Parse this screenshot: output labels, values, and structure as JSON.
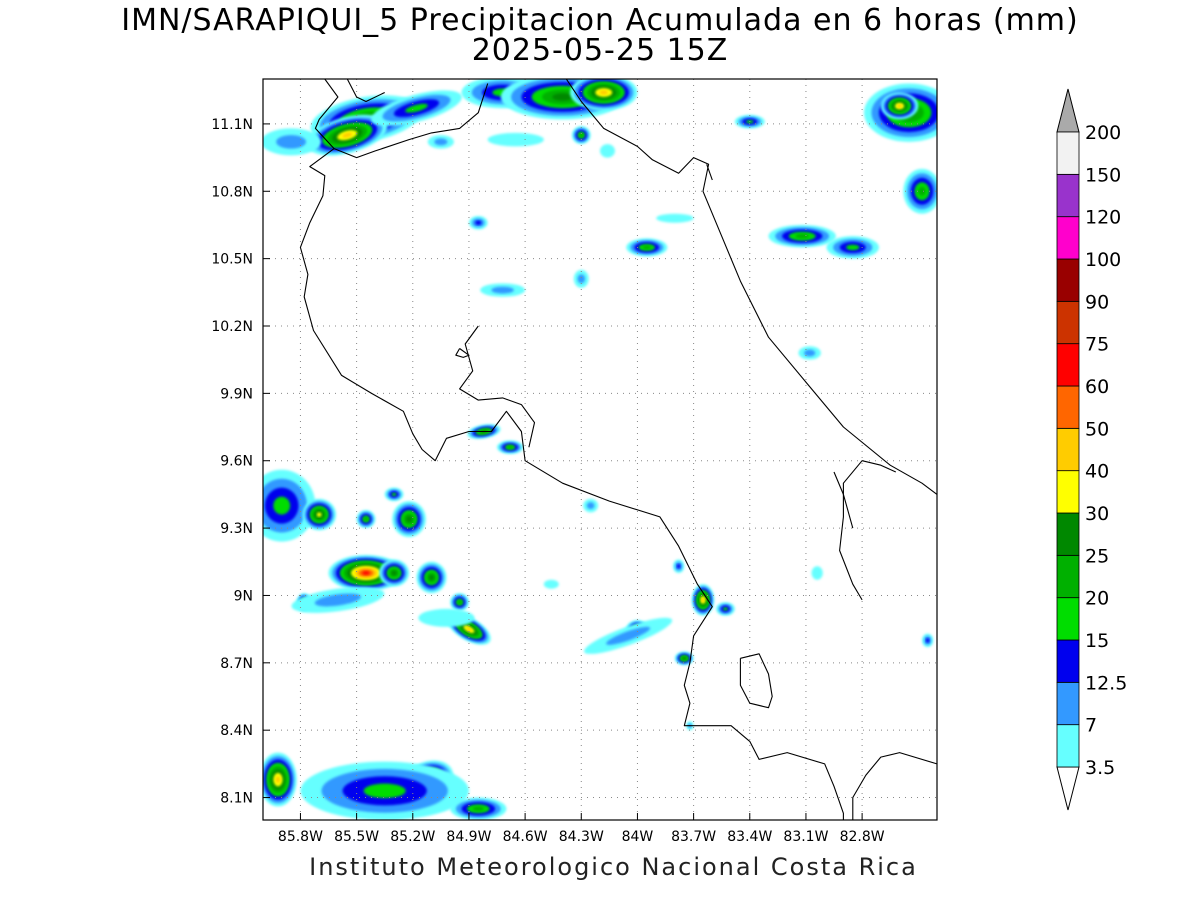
{
  "title": {
    "line1": "IMN/SARAPIQUI_5 Precipitacion Acumulada en 6 horas (mm)",
    "line2": "2025-05-25 15Z"
  },
  "footer": "Instituto Meteorologico Nacional Costa Rica",
  "map": {
    "lon_range": [
      -86.0,
      -82.4
    ],
    "lat_range": [
      8.0,
      11.3
    ],
    "x_ticks": [
      {
        "lon": -85.8,
        "label": "85.8W"
      },
      {
        "lon": -85.5,
        "label": "85.5W"
      },
      {
        "lon": -85.2,
        "label": "85.2W"
      },
      {
        "lon": -84.9,
        "label": "84.9W"
      },
      {
        "lon": -84.6,
        "label": "84.6W"
      },
      {
        "lon": -84.3,
        "label": "84.3W"
      },
      {
        "lon": -84.0,
        "label": "84W"
      },
      {
        "lon": -83.7,
        "label": "83.7W"
      },
      {
        "lon": -83.4,
        "label": "83.4W"
      },
      {
        "lon": -83.1,
        "label": "83.1W"
      },
      {
        "lon": -82.8,
        "label": "82.8W"
      }
    ],
    "y_ticks": [
      {
        "lat": 11.1,
        "label": "11.1N"
      },
      {
        "lat": 10.8,
        "label": "10.8N"
      },
      {
        "lat": 10.5,
        "label": "10.5N"
      },
      {
        "lat": 10.2,
        "label": "10.2N"
      },
      {
        "lat": 9.9,
        "label": "9.9N"
      },
      {
        "lat": 9.6,
        "label": "9.6N"
      },
      {
        "lat": 9.3,
        "label": "9.3N"
      },
      {
        "lat": 9.0,
        "label": "9N"
      },
      {
        "lat": 8.7,
        "label": "8.7N"
      },
      {
        "lat": 8.4,
        "label": "8.4N"
      },
      {
        "lat": 8.1,
        "label": "8.1N"
      }
    ],
    "grid": true,
    "coastlines": [
      [
        [
          -85.67,
          11.3
        ],
        [
          -85.6,
          11.22
        ],
        [
          -85.7,
          11.12
        ],
        [
          -85.72,
          11.08
        ],
        [
          -85.62,
          10.99
        ],
        [
          -85.75,
          10.91
        ],
        [
          -85.67,
          10.87
        ],
        [
          -85.68,
          10.78
        ],
        [
          -85.75,
          10.66
        ],
        [
          -85.8,
          10.55
        ],
        [
          -85.76,
          10.43
        ],
        [
          -85.78,
          10.33
        ],
        [
          -85.73,
          10.18
        ],
        [
          -85.58,
          9.98
        ],
        [
          -85.42,
          9.9
        ],
        [
          -85.25,
          9.82
        ],
        [
          -85.2,
          9.72
        ],
        [
          -85.15,
          9.65
        ],
        [
          -85.08,
          9.6
        ],
        [
          -85.02,
          9.7
        ],
        [
          -84.9,
          9.73
        ],
        [
          -84.78,
          9.73
        ],
        [
          -84.7,
          9.82
        ],
        [
          -84.62,
          9.73
        ],
        [
          -84.6,
          9.6
        ],
        [
          -84.4,
          9.5
        ],
        [
          -84.15,
          9.42
        ],
        [
          -83.88,
          9.35
        ],
        [
          -83.78,
          9.22
        ],
        [
          -83.68,
          9.05
        ],
        [
          -83.6,
          8.95
        ],
        [
          -83.7,
          8.82
        ],
        [
          -83.72,
          8.7
        ],
        [
          -83.75,
          8.6
        ],
        [
          -83.72,
          8.52
        ],
        [
          -83.75,
          8.42
        ],
        [
          -83.5,
          8.42
        ],
        [
          -83.4,
          8.35
        ],
        [
          -83.35,
          8.27
        ],
        [
          -83.2,
          8.3
        ],
        [
          -83.0,
          8.25
        ],
        [
          -82.95,
          8.15
        ],
        [
          -82.9,
          8.03
        ],
        [
          -82.9,
          8.0
        ]
      ],
      [
        [
          -84.85,
          10.2
        ],
        [
          -84.92,
          10.12
        ],
        [
          -84.88,
          10.0
        ],
        [
          -84.95,
          9.92
        ],
        [
          -84.85,
          9.87
        ],
        [
          -84.72,
          9.88
        ],
        [
          -84.62,
          9.85
        ],
        [
          -84.55,
          9.77
        ],
        [
          -84.58,
          9.66
        ]
      ],
      [
        [
          -84.95,
          10.1
        ],
        [
          -84.9,
          10.07
        ],
        [
          -84.93,
          10.06
        ],
        [
          -84.97,
          10.07
        ],
        [
          -84.95,
          10.1
        ]
      ],
      [
        [
          -84.38,
          11.3
        ],
        [
          -84.3,
          11.2
        ],
        [
          -84.18,
          11.08
        ],
        [
          -84.0,
          11.0
        ],
        [
          -83.92,
          10.94
        ],
        [
          -83.78,
          10.88
        ],
        [
          -83.7,
          10.95
        ],
        [
          -83.62,
          10.92
        ],
        [
          -83.65,
          10.8
        ],
        [
          -83.55,
          10.6
        ],
        [
          -83.45,
          10.4
        ],
        [
          -83.3,
          10.15
        ],
        [
          -83.1,
          9.95
        ],
        [
          -82.9,
          9.75
        ],
        [
          -82.65,
          9.58
        ],
        [
          -82.48,
          9.5
        ],
        [
          -82.4,
          9.45
        ]
      ],
      [
        [
          -83.63,
          10.92
        ],
        [
          -83.6,
          10.85
        ]
      ],
      [
        [
          -82.8,
          8.98
        ],
        [
          -82.85,
          9.05
        ],
        [
          -82.92,
          9.2
        ],
        [
          -82.9,
          9.35
        ],
        [
          -82.9,
          9.5
        ],
        [
          -82.8,
          9.6
        ],
        [
          -82.7,
          9.58
        ],
        [
          -82.62,
          9.55
        ]
      ],
      [
        [
          -82.85,
          8.0
        ],
        [
          -82.85,
          8.1
        ],
        [
          -82.78,
          8.2
        ],
        [
          -82.7,
          8.28
        ],
        [
          -82.6,
          8.3
        ],
        [
          -82.4,
          8.25
        ]
      ],
      [
        [
          -83.45,
          8.72
        ],
        [
          -83.35,
          8.74
        ],
        [
          -83.3,
          8.65
        ],
        [
          -83.28,
          8.55
        ],
        [
          -83.3,
          8.5
        ],
        [
          -83.4,
          8.52
        ],
        [
          -83.45,
          8.6
        ],
        [
          -83.45,
          8.72
        ]
      ],
      [
        [
          -85.62,
          10.99
        ],
        [
          -85.5,
          10.95
        ],
        [
          -85.4,
          10.98
        ],
        [
          -85.22,
          11.03
        ],
        [
          -85.1,
          11.06
        ],
        [
          -84.95,
          11.08
        ],
        [
          -84.85,
          11.15
        ],
        [
          -84.8,
          11.28
        ]
      ],
      [
        [
          -85.55,
          11.3
        ],
        [
          -85.5,
          11.22
        ],
        [
          -85.45,
          11.2
        ],
        [
          -85.35,
          11.24
        ]
      ],
      [
        [
          -82.95,
          9.55
        ],
        [
          -82.9,
          9.45
        ],
        [
          -82.85,
          9.3
        ]
      ]
    ],
    "rain_cells": [
      {
        "lon": -85.45,
        "lat": 11.12,
        "rx": 0.3,
        "ry": 0.1,
        "rot": -10,
        "peak": 25
      },
      {
        "lon": -85.55,
        "lat": 11.05,
        "rx": 0.22,
        "ry": 0.08,
        "rot": -15,
        "peak": 40
      },
      {
        "lon": -85.85,
        "lat": 11.02,
        "rx": 0.16,
        "ry": 0.06,
        "rot": 0,
        "peak": 7
      },
      {
        "lon": -85.18,
        "lat": 11.17,
        "rx": 0.25,
        "ry": 0.06,
        "rot": -15,
        "peak": 15
      },
      {
        "lon": -84.72,
        "lat": 11.24,
        "rx": 0.22,
        "ry": 0.07,
        "rot": 0,
        "peak": 15
      },
      {
        "lon": -84.4,
        "lat": 11.22,
        "rx": 0.33,
        "ry": 0.1,
        "rot": 0,
        "peak": 25
      },
      {
        "lon": -84.18,
        "lat": 11.24,
        "rx": 0.18,
        "ry": 0.08,
        "rot": 0,
        "peak": 40
      },
      {
        "lon": -84.3,
        "lat": 11.05,
        "rx": 0.05,
        "ry": 0.04,
        "rot": 0,
        "peak": 20
      },
      {
        "lon": -84.65,
        "lat": 11.03,
        "rx": 0.15,
        "ry": 0.03,
        "rot": 0,
        "peak": 3.5
      },
      {
        "lon": -85.05,
        "lat": 11.02,
        "rx": 0.07,
        "ry": 0.03,
        "rot": 0,
        "peak": 7
      },
      {
        "lon": -84.16,
        "lat": 10.98,
        "rx": 0.04,
        "ry": 0.03,
        "rot": 0,
        "peak": 3.5
      },
      {
        "lon": -82.55,
        "lat": 11.15,
        "rx": 0.24,
        "ry": 0.13,
        "rot": 0,
        "peak": 25
      },
      {
        "lon": -82.6,
        "lat": 11.18,
        "rx": 0.1,
        "ry": 0.06,
        "rot": 0,
        "peak": 40
      },
      {
        "lon": -82.48,
        "lat": 10.8,
        "rx": 0.1,
        "ry": 0.1,
        "rot": 0,
        "peak": 20
      },
      {
        "lon": -83.4,
        "lat": 11.11,
        "rx": 0.08,
        "ry": 0.03,
        "rot": 0,
        "peak": 15
      },
      {
        "lon": -83.12,
        "lat": 10.6,
        "rx": 0.18,
        "ry": 0.05,
        "rot": 0,
        "peak": 20
      },
      {
        "lon": -82.85,
        "lat": 10.55,
        "rx": 0.14,
        "ry": 0.05,
        "rot": 0,
        "peak": 15
      },
      {
        "lon": -83.95,
        "lat": 10.55,
        "rx": 0.11,
        "ry": 0.04,
        "rot": 0,
        "peak": 20
      },
      {
        "lon": -84.85,
        "lat": 10.66,
        "rx": 0.05,
        "ry": 0.03,
        "rot": 0,
        "peak": 12.5
      },
      {
        "lon": -84.72,
        "lat": 10.36,
        "rx": 0.12,
        "ry": 0.03,
        "rot": 0,
        "peak": 7
      },
      {
        "lon": -84.3,
        "lat": 10.41,
        "rx": 0.04,
        "ry": 0.04,
        "rot": 0,
        "peak": 7
      },
      {
        "lon": -83.8,
        "lat": 10.68,
        "rx": 0.1,
        "ry": 0.02,
        "rot": 0,
        "peak": 3.5
      },
      {
        "lon": -83.08,
        "lat": 10.08,
        "rx": 0.06,
        "ry": 0.03,
        "rot": 0,
        "peak": 7
      },
      {
        "lon": -84.82,
        "lat": 9.73,
        "rx": 0.09,
        "ry": 0.03,
        "rot": -10,
        "peak": 25
      },
      {
        "lon": -84.68,
        "lat": 9.66,
        "rx": 0.07,
        "ry": 0.03,
        "rot": 0,
        "peak": 20
      },
      {
        "lon": -85.9,
        "lat": 9.4,
        "rx": 0.18,
        "ry": 0.16,
        "rot": 0,
        "peak": 15
      },
      {
        "lon": -85.7,
        "lat": 9.36,
        "rx": 0.09,
        "ry": 0.07,
        "rot": 0,
        "peak": 30
      },
      {
        "lon": -85.45,
        "lat": 9.34,
        "rx": 0.05,
        "ry": 0.04,
        "rot": 0,
        "peak": 20
      },
      {
        "lon": -85.22,
        "lat": 9.34,
        "rx": 0.09,
        "ry": 0.08,
        "rot": 0,
        "peak": 25
      },
      {
        "lon": -85.3,
        "lat": 9.45,
        "rx": 0.05,
        "ry": 0.03,
        "rot": 0,
        "peak": 15
      },
      {
        "lon": -85.45,
        "lat": 9.1,
        "rx": 0.2,
        "ry": 0.08,
        "rot": 0,
        "peak": 60
      },
      {
        "lon": -85.3,
        "lat": 9.1,
        "rx": 0.08,
        "ry": 0.06,
        "rot": 0,
        "peak": 25
      },
      {
        "lon": -85.1,
        "lat": 9.08,
        "rx": 0.08,
        "ry": 0.07,
        "rot": 0,
        "peak": 25
      },
      {
        "lon": -84.9,
        "lat": 8.85,
        "rx": 0.13,
        "ry": 0.05,
        "rot": 30,
        "peak": 40
      },
      {
        "lon": -84.95,
        "lat": 8.97,
        "rx": 0.05,
        "ry": 0.04,
        "rot": 0,
        "peak": 20
      },
      {
        "lon": -85.78,
        "lat": 8.97,
        "rx": 0.04,
        "ry": 0.04,
        "rot": 0,
        "peak": 25
      },
      {
        "lon": -85.6,
        "lat": 8.98,
        "rx": 0.25,
        "ry": 0.05,
        "rot": -8,
        "peak": 7
      },
      {
        "lon": -85.02,
        "lat": 8.9,
        "rx": 0.15,
        "ry": 0.04,
        "rot": 0,
        "peak": 3.5
      },
      {
        "lon": -83.65,
        "lat": 8.98,
        "rx": 0.06,
        "ry": 0.07,
        "rot": 0,
        "peak": 40
      },
      {
        "lon": -83.53,
        "lat": 8.94,
        "rx": 0.05,
        "ry": 0.03,
        "rot": 0,
        "peak": 15
      },
      {
        "lon": -84.0,
        "lat": 8.85,
        "rx": 0.06,
        "ry": 0.04,
        "rot": 0,
        "peak": 25
      },
      {
        "lon": -83.75,
        "lat": 8.72,
        "rx": 0.05,
        "ry": 0.03,
        "rot": 0,
        "peak": 25
      },
      {
        "lon": -84.05,
        "lat": 8.82,
        "rx": 0.25,
        "ry": 0.04,
        "rot": -20,
        "peak": 7
      },
      {
        "lon": -83.78,
        "lat": 9.13,
        "rx": 0.03,
        "ry": 0.03,
        "rot": 0,
        "peak": 12.5
      },
      {
        "lon": -84.25,
        "lat": 9.4,
        "rx": 0.04,
        "ry": 0.03,
        "rot": 0,
        "peak": 7
      },
      {
        "lon": -84.46,
        "lat": 9.05,
        "rx": 0.04,
        "ry": 0.02,
        "rot": 0,
        "peak": 3.5
      },
      {
        "lon": -82.45,
        "lat": 8.8,
        "rx": 0.03,
        "ry": 0.03,
        "rot": 0,
        "peak": 12.5
      },
      {
        "lon": -83.04,
        "lat": 9.1,
        "rx": 0.03,
        "ry": 0.03,
        "rot": 0,
        "peak": 3.5
      },
      {
        "lon": -83.72,
        "lat": 8.42,
        "rx": 0.02,
        "ry": 0.02,
        "rot": 0,
        "peak": 7
      },
      {
        "lon": -85.92,
        "lat": 8.18,
        "rx": 0.1,
        "ry": 0.12,
        "rot": 0,
        "peak": 40
      },
      {
        "lon": -85.55,
        "lat": 8.15,
        "rx": 0.08,
        "ry": 0.07,
        "rot": 0,
        "peak": 60
      },
      {
        "lon": -85.3,
        "lat": 8.08,
        "rx": 0.12,
        "ry": 0.07,
        "rot": 0,
        "peak": 60
      },
      {
        "lon": -85.12,
        "lat": 8.18,
        "rx": 0.14,
        "ry": 0.08,
        "rot": -20,
        "peak": 40
      },
      {
        "lon": -85.35,
        "lat": 8.13,
        "rx": 0.45,
        "ry": 0.13,
        "rot": 0,
        "peak": 15
      },
      {
        "lon": -84.85,
        "lat": 8.05,
        "rx": 0.15,
        "ry": 0.05,
        "rot": 0,
        "peak": 20
      }
    ]
  },
  "colorbar": {
    "levels": [
      3.5,
      7,
      12.5,
      15,
      20,
      25,
      30,
      40,
      50,
      60,
      75,
      90,
      100,
      120,
      150,
      200
    ],
    "labels": [
      "3.5",
      "7",
      "12.5",
      "15",
      "20",
      "25",
      "30",
      "40",
      "50",
      "60",
      "75",
      "90",
      "100",
      "120",
      "150",
      "200"
    ],
    "colors": [
      "#66ffff",
      "#3399ff",
      "#0000ee",
      "#00dd00",
      "#00b000",
      "#008800",
      "#ffff00",
      "#ffcc00",
      "#ff6600",
      "#ff0000",
      "#cc3300",
      "#990000",
      "#ff00cc",
      "#9933cc",
      "#f2f2f2"
    ],
    "under_color": "#ffffff",
    "over_color": "#aaaaaa"
  }
}
